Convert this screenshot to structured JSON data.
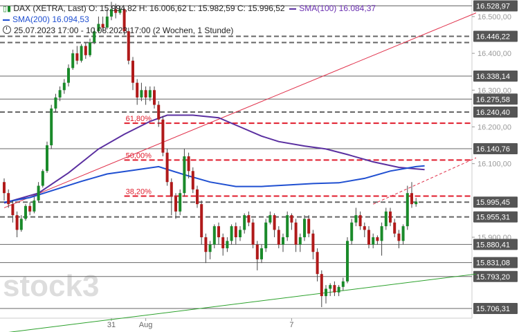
{
  "legend": {
    "instrument": "DAX (XETRA, Last)",
    "ohlc": "O: 15.994,82  H: 16.006,62  L: 15.982,59  C: 15.996,52",
    "sma100_label": "SMA(100)",
    "sma100_value": "16.084,37",
    "sma200_label": "SMA(200)",
    "sma200_value": "16.094,53",
    "range": "25.07.2023 17:00 - 10.08.2023 17:00",
    "period": "(2 Wochen, 1 Stunde)"
  },
  "watermark": "stock3",
  "colors": {
    "up": "#1a8a2a",
    "down": "#b01a1a",
    "sma100": "#5a2fa0",
    "sma200": "#1f4fd1",
    "fib": "#e01a2a",
    "trend_red": "#e0304a",
    "trend_green": "#2aa02a",
    "level_gray": "#666666"
  },
  "chart_data": {
    "type": "candlestick",
    "title": "",
    "ylim": [
      15680,
      16545
    ],
    "y_ticks": [
      {
        "value": 16500,
        "label": "16.500,00"
      },
      {
        "value": 16400,
        "label": "16.400,00"
      },
      {
        "value": 16300,
        "label": "16.300,00"
      },
      {
        "value": 16200,
        "label": "16.200,00"
      },
      {
        "value": 16100,
        "label": "16.100,00"
      },
      {
        "value": 15900,
        "label": "15.900,00"
      }
    ],
    "x_ticks": [
      {
        "index": 25,
        "label": "31"
      },
      {
        "index": 33,
        "label": "Aug"
      },
      {
        "index": 67,
        "label": "7"
      }
    ],
    "x_count": 100,
    "candles": [
      [
        16050,
        16020,
        16060,
        16000
      ],
      [
        16020,
        15990,
        16030,
        15980
      ],
      [
        15990,
        15960,
        16000,
        15940
      ],
      [
        15960,
        15920,
        15970,
        15900
      ],
      [
        15920,
        15950,
        15960,
        15915
      ],
      [
        15950,
        15985,
        15990,
        15945
      ],
      [
        15985,
        15970,
        15995,
        15960
      ],
      [
        15970,
        16000,
        16010,
        15965
      ],
      [
        16000,
        16040,
        16050,
        15995
      ],
      [
        16040,
        16080,
        16085,
        16035
      ],
      [
        16080,
        16150,
        16160,
        16075
      ],
      [
        16150,
        16250,
        16260,
        16140
      ],
      [
        16250,
        16280,
        16290,
        16240
      ],
      [
        16280,
        16300,
        16310,
        16270
      ],
      [
        16300,
        16320,
        16330,
        16290
      ],
      [
        16320,
        16360,
        16370,
        16310
      ],
      [
        16360,
        16400,
        16410,
        16355
      ],
      [
        16400,
        16380,
        16420,
        16370
      ],
      [
        16380,
        16420,
        16425,
        16375
      ],
      [
        16420,
        16395,
        16430,
        16385
      ],
      [
        16395,
        16430,
        16440,
        16390
      ],
      [
        16430,
        16460,
        16470,
        16425
      ],
      [
        16460,
        16480,
        16500,
        16455
      ],
      [
        16480,
        16470,
        16500,
        16460
      ],
      [
        16470,
        16500,
        16520,
        16465
      ],
      [
        16500,
        16520,
        16540,
        16490
      ],
      [
        16520,
        16510,
        16535,
        16495
      ],
      [
        16510,
        16520,
        16530,
        16505
      ],
      [
        16520,
        16460,
        16525,
        16450
      ],
      [
        16460,
        16380,
        16470,
        16370
      ],
      [
        16380,
        16320,
        16390,
        16300
      ],
      [
        16320,
        16280,
        16330,
        16260
      ],
      [
        16280,
        16300,
        16320,
        16270
      ],
      [
        16300,
        16280,
        16310,
        16260
      ],
      [
        16280,
        16300,
        16310,
        16270
      ],
      [
        16300,
        16260,
        16310,
        16250
      ],
      [
        16260,
        16220,
        16270,
        16200
      ],
      [
        16220,
        16130,
        16230,
        16120
      ],
      [
        16130,
        16050,
        16140,
        16040
      ],
      [
        16050,
        16010,
        16060,
        15960
      ],
      [
        16010,
        15970,
        16020,
        15950
      ],
      [
        15970,
        16020,
        16030,
        15960
      ],
      [
        16020,
        16120,
        16140,
        16010
      ],
      [
        16120,
        16080,
        16130,
        16060
      ],
      [
        16080,
        16030,
        16090,
        16020
      ],
      [
        16030,
        15990,
        16040,
        15980
      ],
      [
        15990,
        15900,
        16000,
        15880
      ],
      [
        15900,
        15860,
        15910,
        15830
      ],
      [
        15860,
        15880,
        15890,
        15840
      ],
      [
        15880,
        15930,
        15935,
        15870
      ],
      [
        15930,
        15900,
        15940,
        15880
      ],
      [
        15900,
        15870,
        15910,
        15850
      ],
      [
        15870,
        15890,
        15900,
        15860
      ],
      [
        15890,
        15930,
        15935,
        15880
      ],
      [
        15930,
        15900,
        15940,
        15880
      ],
      [
        15900,
        15920,
        15930,
        15890
      ],
      [
        15920,
        15960,
        15965,
        15910
      ],
      [
        15960,
        15940,
        15970,
        15930
      ],
      [
        15940,
        15880,
        15950,
        15870
      ],
      [
        15880,
        15840,
        15890,
        15810
      ],
      [
        15840,
        15870,
        15880,
        15830
      ],
      [
        15870,
        15940,
        15950,
        15860
      ],
      [
        15940,
        15960,
        15970,
        15935
      ],
      [
        15960,
        15920,
        15965,
        15900
      ],
      [
        15920,
        15880,
        15930,
        15870
      ],
      [
        15880,
        15900,
        15910,
        15860
      ],
      [
        15900,
        15960,
        15970,
        15890
      ],
      [
        15960,
        15940,
        15965,
        15920
      ],
      [
        15940,
        15880,
        15950,
        15860
      ],
      [
        15880,
        15900,
        15910,
        15860
      ],
      [
        15900,
        15950,
        15960,
        15890
      ],
      [
        15950,
        15910,
        15960,
        15900
      ],
      [
        15910,
        15860,
        15920,
        15840
      ],
      [
        15860,
        15800,
        15870,
        15780
      ],
      [
        15800,
        15740,
        15810,
        15710
      ],
      [
        15740,
        15760,
        15770,
        15720
      ],
      [
        15760,
        15770,
        15775,
        15740
      ],
      [
        15770,
        15750,
        15780,
        15740
      ],
      [
        15750,
        15765,
        15770,
        15740
      ],
      [
        15765,
        15780,
        15790,
        15755
      ],
      [
        15780,
        15890,
        15900,
        15775
      ],
      [
        15890,
        15940,
        15950,
        15880
      ],
      [
        15940,
        15960,
        15980,
        15930
      ],
      [
        15960,
        15930,
        15970,
        15920
      ],
      [
        15930,
        15920,
        15940,
        15900
      ],
      [
        15920,
        15880,
        15930,
        15870
      ],
      [
        15880,
        15900,
        15910,
        15870
      ],
      [
        15900,
        15890,
        15905,
        15880
      ],
      [
        15890,
        15930,
        15940,
        15850
      ],
      [
        15930,
        15970,
        15980,
        15920
      ],
      [
        15970,
        15940,
        15980,
        15930
      ],
      [
        15940,
        15910,
        15950,
        15900
      ],
      [
        15910,
        15890,
        15920,
        15870
      ],
      [
        15890,
        15930,
        15935,
        15880
      ],
      [
        15930,
        16020,
        16040,
        15920
      ],
      [
        16020,
        15990,
        16050,
        15980
      ],
      [
        15990,
        15997,
        16007,
        15983
      ]
    ],
    "sma100": [
      [
        0,
        15993
      ],
      [
        8,
        16020
      ],
      [
        15,
        16075
      ],
      [
        22,
        16140
      ],
      [
        28,
        16180
      ],
      [
        34,
        16215
      ],
      [
        38,
        16232
      ],
      [
        44,
        16232
      ],
      [
        50,
        16225
      ],
      [
        55,
        16200
      ],
      [
        60,
        16175
      ],
      [
        64,
        16160
      ],
      [
        70,
        16148
      ],
      [
        75,
        16140
      ],
      [
        80,
        16125
      ],
      [
        86,
        16105
      ],
      [
        92,
        16090
      ],
      [
        98,
        16084
      ]
    ],
    "sma200": [
      [
        0,
        15995
      ],
      [
        6,
        16008
      ],
      [
        12,
        16030
      ],
      [
        18,
        16052
      ],
      [
        24,
        16072
      ],
      [
        30,
        16082
      ],
      [
        36,
        16092
      ],
      [
        42,
        16070
      ],
      [
        48,
        16050
      ],
      [
        54,
        16038
      ],
      [
        60,
        16038
      ],
      [
        66,
        16042
      ],
      [
        72,
        16046
      ],
      [
        78,
        16048
      ],
      [
        84,
        16060
      ],
      [
        90,
        16080
      ],
      [
        96,
        16092
      ],
      [
        98,
        16094
      ]
    ],
    "levels": [
      {
        "value": 16528.97,
        "label": "16.528,97",
        "style": "solid"
      },
      {
        "value": 16446.22,
        "label": "16.446,22",
        "style": "dashed"
      },
      {
        "value": 16446.22,
        "label": "",
        "style": "dashed2"
      },
      {
        "value": 16338.14,
        "label": "16.338,14",
        "style": "solid"
      },
      {
        "value": 16275.58,
        "label": "16.275,58",
        "style": "solid"
      },
      {
        "value": 16240.4,
        "label": "16.240,40",
        "style": "dashed"
      },
      {
        "value": 16140.76,
        "label": "16.140,76",
        "style": "solid"
      },
      {
        "value": 15995.45,
        "label": "15.995,45",
        "style": "dashed"
      },
      {
        "value": 15955.31,
        "label": "15.955,31",
        "style": "dashed"
      },
      {
        "value": 15880.41,
        "label": "15.880,41",
        "style": "solid"
      },
      {
        "value": 15831.08,
        "label": "15.831,08",
        "style": "solid"
      },
      {
        "value": 15793.2,
        "label": "15.793,20",
        "style": "solid"
      },
      {
        "value": 15706.31,
        "label": "15.706,31",
        "style": "solid"
      }
    ],
    "fib_levels": [
      {
        "value": 16210,
        "label": "61,80%",
        "start_index": 28
      },
      {
        "value": 16110,
        "label": "50,00%",
        "start_index": 28
      },
      {
        "value": 16012,
        "label": "38,20%",
        "start_index": 28
      }
    ],
    "trendlines": [
      {
        "from": [
          0,
          15980
        ],
        "to": [
          110,
          16510
        ],
        "color": "trend_red",
        "dash": false
      },
      {
        "from": [
          86,
          15990
        ],
        "to": [
          110,
          16116
        ],
        "color": "trend_red",
        "dash": true
      },
      {
        "from": [
          0,
          15640
        ],
        "to": [
          110,
          15800
        ],
        "color": "trend_green",
        "dash": false
      }
    ]
  }
}
